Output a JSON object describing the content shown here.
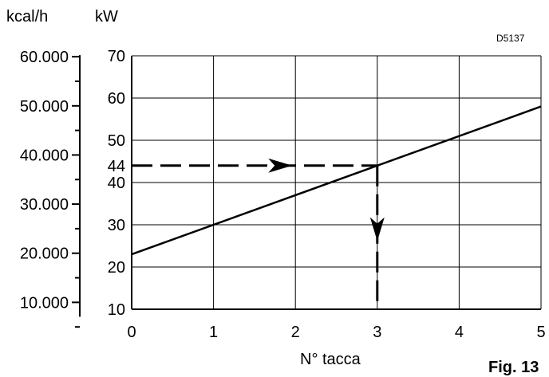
{
  "chart_data": {
    "type": "line",
    "xlabel": "N° tacca",
    "ylabel_left": "kcal/h",
    "ylabel_right": "kW",
    "x_ticks": [
      0,
      1,
      2,
      3,
      4,
      5
    ],
    "xlim": [
      0,
      5
    ],
    "ylim_kw": [
      10,
      70
    ],
    "kw_ticks": [
      10,
      20,
      30,
      40,
      50,
      60,
      70
    ],
    "kcal_ticks": [
      "10.000",
      "20.000",
      "30.000",
      "40.000",
      "50.000",
      "60.000"
    ],
    "kcal_values": [
      10000,
      20000,
      30000,
      40000,
      50000,
      60000
    ],
    "grid": true,
    "series": [
      {
        "x": [
          0,
          5
        ],
        "y": [
          23,
          58
        ]
      }
    ],
    "annotation": {
      "kw_value": 44,
      "kw_label": "44",
      "x_value": 3
    },
    "line_color": "#000000"
  },
  "code": "D5137",
  "fig_label": "Fig. 13"
}
